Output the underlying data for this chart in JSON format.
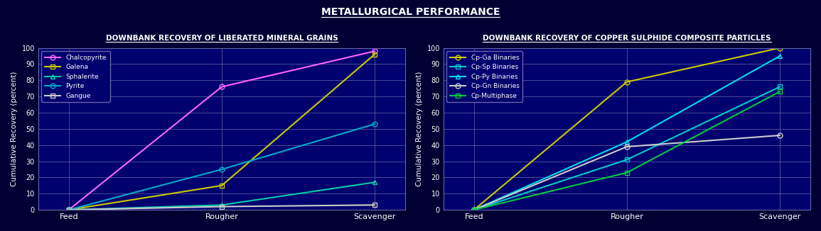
{
  "bg_color": "#000033",
  "plot_bg_color": "#00006e",
  "text_color": "white",
  "grid_color": "#6666aa",
  "fig_title": "METALLURGICAL PERFORMANCE",
  "fig_title_fontsize": 10,
  "x_labels": [
    "Feed",
    "Rougher",
    "Scavenger"
  ],
  "x_positions": [
    0,
    1,
    2
  ],
  "ylabel": "Cumulative Recovery (percent)",
  "ylim": [
    0,
    100
  ],
  "yticks": [
    0,
    10,
    20,
    30,
    40,
    50,
    60,
    70,
    80,
    90,
    100
  ],
  "chart1_title": "DOWNBANK RECOVERY OF LIBERATED MINERAL GRAINS",
  "chart1_series": [
    {
      "label": "Chalcopyrite",
      "color": "#ff66ff",
      "marker": "o",
      "data": [
        0,
        76,
        98
      ]
    },
    {
      "label": "Galena",
      "color": "#cccc00",
      "marker": "s",
      "data": [
        0,
        15,
        96
      ]
    },
    {
      "label": "Sphalerite",
      "color": "#00ccaa",
      "marker": "^",
      "data": [
        0,
        3,
        17
      ]
    },
    {
      "label": "Pyrite",
      "color": "#00aacc",
      "marker": "o",
      "data": [
        0,
        25,
        53
      ]
    },
    {
      "label": "Gangue",
      "color": "#cccccc",
      "marker": "s",
      "data": [
        0,
        2,
        3
      ]
    }
  ],
  "chart2_title": "DOWNBANK RECOVERY OF COPPER SULPHIDE COMPOSITE PARTICLES",
  "chart2_series": [
    {
      "label": "Cp-Ga Binaries",
      "color": "#cccc00",
      "marker": "o",
      "data": [
        0,
        79,
        100
      ]
    },
    {
      "label": "Cp-Sp Binaries",
      "color": "#00cccc",
      "marker": "s",
      "data": [
        0,
        31,
        76
      ]
    },
    {
      "label": "Cp-Py Binaries",
      "color": "#00ddee",
      "marker": "^",
      "data": [
        0,
        42,
        95
      ]
    },
    {
      "label": "Cp-Gn Binaries",
      "color": "#cccccc",
      "marker": "o",
      "data": [
        0,
        39,
        46
      ]
    },
    {
      "label": "Cp-Multiphase",
      "color": "#00cc44",
      "marker": "s",
      "data": [
        0,
        23,
        73
      ]
    }
  ]
}
